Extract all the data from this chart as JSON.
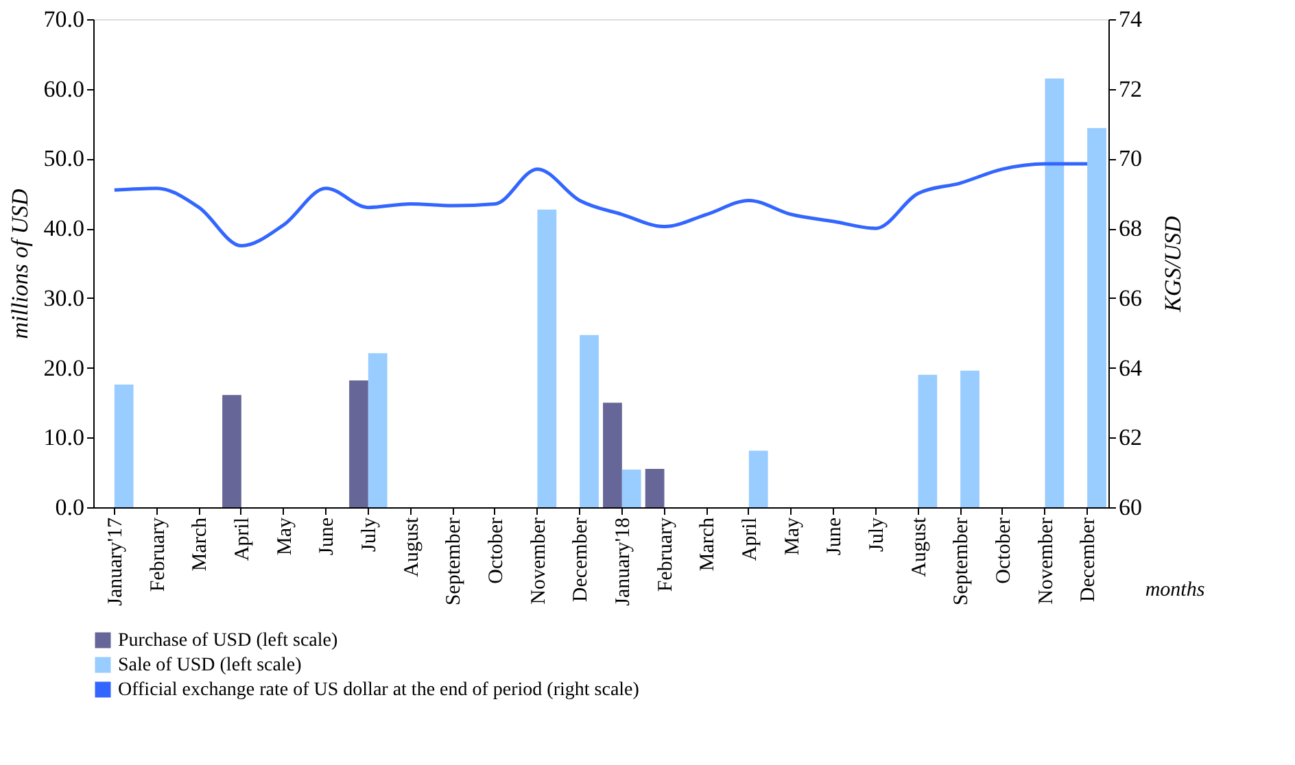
{
  "chart_data": {
    "type": "bar",
    "categories": [
      "January'17",
      "February",
      "March",
      "April",
      "May",
      "June",
      "July",
      "August",
      "September",
      "October",
      "November",
      "December",
      "January'18",
      "February",
      "March",
      "April",
      "May",
      "June",
      "July",
      "August",
      "September",
      "October",
      "November",
      "December"
    ],
    "series": [
      {
        "name": "Purchase of USD (left scale)",
        "color": "#666699",
        "values": [
          null,
          null,
          null,
          16.1,
          null,
          null,
          18.2,
          null,
          null,
          null,
          null,
          null,
          15.0,
          5.5,
          null,
          null,
          null,
          null,
          null,
          null,
          null,
          null,
          null,
          null
        ]
      },
      {
        "name": "Sale of USD (left scale)",
        "color": "#99ccff",
        "values": [
          17.6,
          null,
          null,
          null,
          null,
          null,
          22.1,
          null,
          null,
          null,
          42.7,
          24.7,
          5.4,
          null,
          null,
          8.1,
          null,
          null,
          null,
          19.0,
          19.6,
          null,
          61.5,
          54.4
        ]
      },
      {
        "name": "Official exchange rate of US dollar  at the end of period (right scale)",
        "type": "line",
        "axis": "y2",
        "color": "#3366ff",
        "values": [
          69.1,
          69.15,
          68.6,
          67.5,
          68.1,
          69.15,
          68.6,
          68.7,
          68.65,
          68.7,
          69.7,
          68.8,
          68.4,
          68.05,
          68.4,
          68.8,
          68.4,
          68.2,
          68.0,
          69.0,
          69.3,
          69.7,
          69.85,
          69.85
        ]
      }
    ],
    "xlabel": "months",
    "ylabel": "millions of USD",
    "y2label": "KGS/USD",
    "ylim": [
      0,
      70
    ],
    "yticks": [
      {
        "value": 0,
        "label": "0.0"
      },
      {
        "value": 10,
        "label": "10.0"
      },
      {
        "value": 20,
        "label": "20.0"
      },
      {
        "value": 30,
        "label": "30.0"
      },
      {
        "value": 40,
        "label": "40.0"
      },
      {
        "value": 50,
        "label": "50.0"
      },
      {
        "value": 60,
        "label": "60.0"
      },
      {
        "value": 70,
        "label": "70.0"
      }
    ],
    "y2lim": [
      60,
      74
    ],
    "y2ticks": [
      60,
      62,
      64,
      66,
      68,
      70,
      72,
      74
    ],
    "legend": "bottom",
    "grid": false
  }
}
